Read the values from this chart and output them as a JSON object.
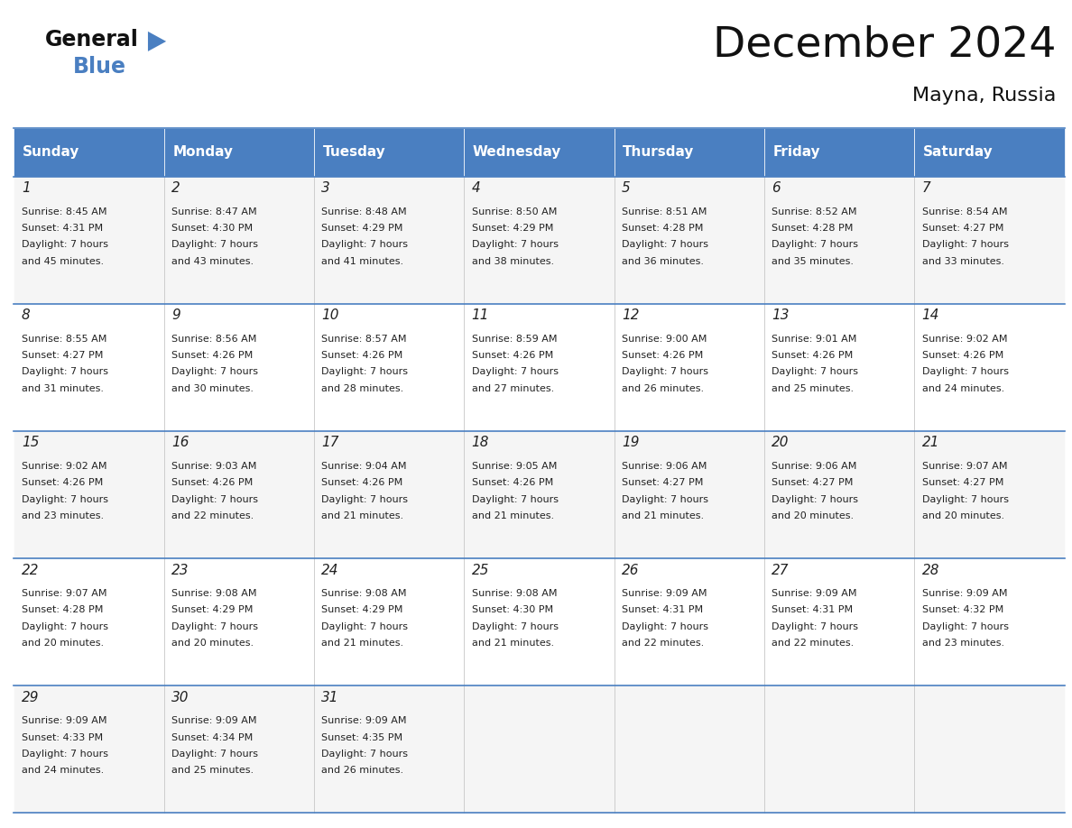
{
  "title": "December 2024",
  "subtitle": "Mayna, Russia",
  "header_color": "#4a7fc1",
  "header_text_color": "#ffffff",
  "row_colors": [
    "#f5f5f5",
    "#ffffff"
  ],
  "border_color": "#4a7fc1",
  "text_color": "#222222",
  "days_of_week": [
    "Sunday",
    "Monday",
    "Tuesday",
    "Wednesday",
    "Thursday",
    "Friday",
    "Saturday"
  ],
  "weeks": [
    [
      {
        "day": "1",
        "sunrise": "8:45 AM",
        "sunset": "4:31 PM",
        "daylight_h": "7 hours",
        "daylight_m": "45 minutes."
      },
      {
        "day": "2",
        "sunrise": "8:47 AM",
        "sunset": "4:30 PM",
        "daylight_h": "7 hours",
        "daylight_m": "43 minutes."
      },
      {
        "day": "3",
        "sunrise": "8:48 AM",
        "sunset": "4:29 PM",
        "daylight_h": "7 hours",
        "daylight_m": "41 minutes."
      },
      {
        "day": "4",
        "sunrise": "8:50 AM",
        "sunset": "4:29 PM",
        "daylight_h": "7 hours",
        "daylight_m": "38 minutes."
      },
      {
        "day": "5",
        "sunrise": "8:51 AM",
        "sunset": "4:28 PM",
        "daylight_h": "7 hours",
        "daylight_m": "36 minutes."
      },
      {
        "day": "6",
        "sunrise": "8:52 AM",
        "sunset": "4:28 PM",
        "daylight_h": "7 hours",
        "daylight_m": "35 minutes."
      },
      {
        "day": "7",
        "sunrise": "8:54 AM",
        "sunset": "4:27 PM",
        "daylight_h": "7 hours",
        "daylight_m": "33 minutes."
      }
    ],
    [
      {
        "day": "8",
        "sunrise": "8:55 AM",
        "sunset": "4:27 PM",
        "daylight_h": "7 hours",
        "daylight_m": "31 minutes."
      },
      {
        "day": "9",
        "sunrise": "8:56 AM",
        "sunset": "4:26 PM",
        "daylight_h": "7 hours",
        "daylight_m": "30 minutes."
      },
      {
        "day": "10",
        "sunrise": "8:57 AM",
        "sunset": "4:26 PM",
        "daylight_h": "7 hours",
        "daylight_m": "28 minutes."
      },
      {
        "day": "11",
        "sunrise": "8:59 AM",
        "sunset": "4:26 PM",
        "daylight_h": "7 hours",
        "daylight_m": "27 minutes."
      },
      {
        "day": "12",
        "sunrise": "9:00 AM",
        "sunset": "4:26 PM",
        "daylight_h": "7 hours",
        "daylight_m": "26 minutes."
      },
      {
        "day": "13",
        "sunrise": "9:01 AM",
        "sunset": "4:26 PM",
        "daylight_h": "7 hours",
        "daylight_m": "25 minutes."
      },
      {
        "day": "14",
        "sunrise": "9:02 AM",
        "sunset": "4:26 PM",
        "daylight_h": "7 hours",
        "daylight_m": "24 minutes."
      }
    ],
    [
      {
        "day": "15",
        "sunrise": "9:02 AM",
        "sunset": "4:26 PM",
        "daylight_h": "7 hours",
        "daylight_m": "23 minutes."
      },
      {
        "day": "16",
        "sunrise": "9:03 AM",
        "sunset": "4:26 PM",
        "daylight_h": "7 hours",
        "daylight_m": "22 minutes."
      },
      {
        "day": "17",
        "sunrise": "9:04 AM",
        "sunset": "4:26 PM",
        "daylight_h": "7 hours",
        "daylight_m": "21 minutes."
      },
      {
        "day": "18",
        "sunrise": "9:05 AM",
        "sunset": "4:26 PM",
        "daylight_h": "7 hours",
        "daylight_m": "21 minutes."
      },
      {
        "day": "19",
        "sunrise": "9:06 AM",
        "sunset": "4:27 PM",
        "daylight_h": "7 hours",
        "daylight_m": "21 minutes."
      },
      {
        "day": "20",
        "sunrise": "9:06 AM",
        "sunset": "4:27 PM",
        "daylight_h": "7 hours",
        "daylight_m": "20 minutes."
      },
      {
        "day": "21",
        "sunrise": "9:07 AM",
        "sunset": "4:27 PM",
        "daylight_h": "7 hours",
        "daylight_m": "20 minutes."
      }
    ],
    [
      {
        "day": "22",
        "sunrise": "9:07 AM",
        "sunset": "4:28 PM",
        "daylight_h": "7 hours",
        "daylight_m": "20 minutes."
      },
      {
        "day": "23",
        "sunrise": "9:08 AM",
        "sunset": "4:29 PM",
        "daylight_h": "7 hours",
        "daylight_m": "20 minutes."
      },
      {
        "day": "24",
        "sunrise": "9:08 AM",
        "sunset": "4:29 PM",
        "daylight_h": "7 hours",
        "daylight_m": "21 minutes."
      },
      {
        "day": "25",
        "sunrise": "9:08 AM",
        "sunset": "4:30 PM",
        "daylight_h": "7 hours",
        "daylight_m": "21 minutes."
      },
      {
        "day": "26",
        "sunrise": "9:09 AM",
        "sunset": "4:31 PM",
        "daylight_h": "7 hours",
        "daylight_m": "22 minutes."
      },
      {
        "day": "27",
        "sunrise": "9:09 AM",
        "sunset": "4:31 PM",
        "daylight_h": "7 hours",
        "daylight_m": "22 minutes."
      },
      {
        "day": "28",
        "sunrise": "9:09 AM",
        "sunset": "4:32 PM",
        "daylight_h": "7 hours",
        "daylight_m": "23 minutes."
      }
    ],
    [
      {
        "day": "29",
        "sunrise": "9:09 AM",
        "sunset": "4:33 PM",
        "daylight_h": "7 hours",
        "daylight_m": "24 minutes."
      },
      {
        "day": "30",
        "sunrise": "9:09 AM",
        "sunset": "4:34 PM",
        "daylight_h": "7 hours",
        "daylight_m": "25 minutes."
      },
      {
        "day": "31",
        "sunrise": "9:09 AM",
        "sunset": "4:35 PM",
        "daylight_h": "7 hours",
        "daylight_m": "26 minutes."
      },
      null,
      null,
      null,
      null
    ]
  ]
}
